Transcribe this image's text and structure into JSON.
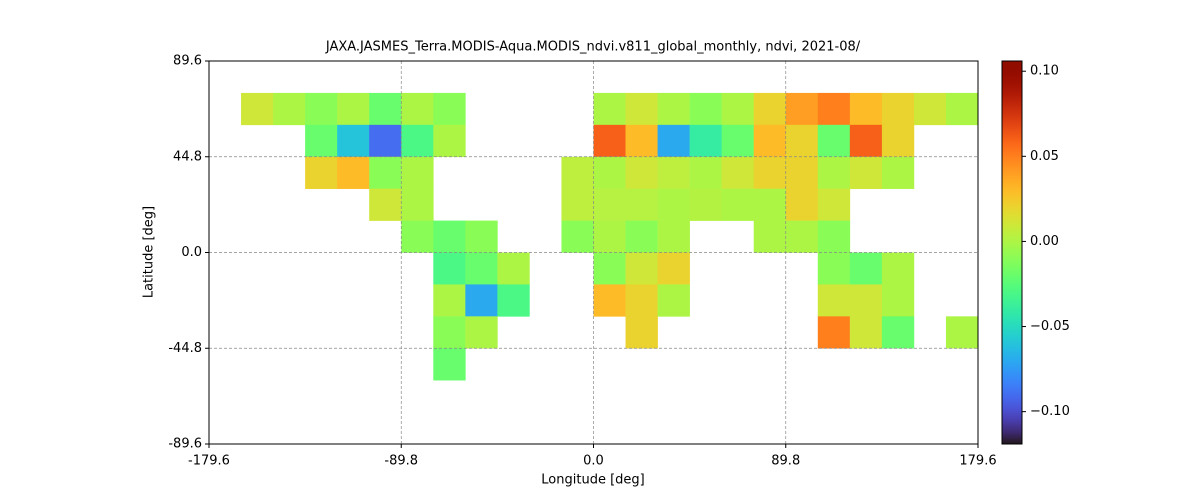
{
  "chart_data": {
    "type": "heatmap",
    "title": "JAXA.JASMES_Terra.MODIS-Aqua.MODIS_ndvi.v811_global_monthly, ndvi, 2021-08/",
    "x_label": "Longitude [deg]",
    "y_label": "Latitude [deg]",
    "xlim": [
      -179.6,
      179.6
    ],
    "ylim": [
      -89.6,
      89.6
    ],
    "xticks": [
      -179.6,
      -89.8,
      {
        "value": 0,
        "label": "0.0"
      },
      89.8,
      179.6
    ],
    "yticks": [
      -89.6,
      -44.8,
      {
        "value": 0,
        "label": "0.0"
      },
      44.8,
      89.6
    ],
    "grid": true,
    "colormap": "turbo",
    "clim": [
      -0.119,
      0.106
    ],
    "colorbar_ticks": [
      {
        "value": -0.1,
        "label": "−0.10"
      },
      {
        "value": -0.05,
        "label": "−0.05"
      },
      {
        "value": 0,
        "label": "0.00"
      },
      0.05,
      {
        "value": 0.1,
        "label": "0.10"
      }
    ],
    "z": [
      [
        null,
        null,
        null,
        null,
        null,
        null,
        null,
        null,
        null,
        null,
        null,
        null,
        null,
        null,
        null,
        null,
        null,
        null,
        null,
        null,
        null,
        null,
        null,
        null
      ],
      [
        null,
        0.01,
        0.0,
        -0.01,
        0.0,
        -0.02,
        0.0,
        -0.01,
        null,
        null,
        null,
        null,
        0.0,
        0.01,
        0.0,
        -0.01,
        0.0,
        0.02,
        0.04,
        0.05,
        0.03,
        0.02,
        0.01,
        0.0
      ],
      [
        null,
        null,
        null,
        -0.02,
        -0.06,
        -0.09,
        -0.03,
        0.0,
        null,
        null,
        null,
        null,
        0.06,
        0.03,
        -0.07,
        -0.04,
        -0.02,
        0.03,
        0.02,
        -0.02,
        0.06,
        0.02,
        null,
        null
      ],
      [
        null,
        null,
        null,
        0.02,
        0.03,
        -0.01,
        0.0,
        null,
        null,
        null,
        null,
        0.005,
        0.0,
        0.01,
        0.005,
        0.0,
        0.01,
        0.02,
        0.02,
        0.0,
        0.01,
        0.0,
        null,
        null
      ],
      [
        null,
        null,
        null,
        null,
        null,
        0.01,
        0.0,
        null,
        null,
        null,
        null,
        0.005,
        0.003,
        0.003,
        0.0,
        0.002,
        0.0,
        0.0,
        0.02,
        0.01,
        null,
        null,
        null,
        null
      ],
      [
        null,
        null,
        null,
        null,
        null,
        null,
        -0.01,
        -0.02,
        -0.01,
        null,
        null,
        -0.01,
        0.0,
        -0.01,
        0.0,
        null,
        null,
        0.0,
        0.0,
        -0.01,
        null,
        null,
        null,
        null
      ],
      [
        null,
        null,
        null,
        null,
        null,
        null,
        null,
        -0.03,
        -0.02,
        0.0,
        null,
        null,
        -0.01,
        0.01,
        0.02,
        null,
        null,
        null,
        null,
        -0.01,
        -0.02,
        0.0,
        null,
        null
      ],
      [
        null,
        null,
        null,
        null,
        null,
        null,
        null,
        0.0,
        -0.07,
        -0.03,
        null,
        null,
        0.03,
        0.02,
        0.0,
        null,
        null,
        null,
        null,
        0.01,
        0.01,
        0.0,
        null,
        null
      ],
      [
        null,
        null,
        null,
        null,
        null,
        null,
        null,
        -0.01,
        0.0,
        null,
        null,
        null,
        null,
        0.02,
        null,
        null,
        null,
        null,
        null,
        0.05,
        0.01,
        -0.02,
        null,
        0.0
      ],
      [
        null,
        null,
        null,
        null,
        null,
        null,
        null,
        -0.02,
        null,
        null,
        null,
        null,
        null,
        null,
        null,
        null,
        null,
        null,
        null,
        null,
        null,
        null,
        null,
        null
      ],
      [
        null,
        null,
        null,
        null,
        null,
        null,
        null,
        null,
        null,
        null,
        null,
        null,
        null,
        null,
        null,
        null,
        null,
        null,
        null,
        null,
        null,
        null,
        null,
        null
      ],
      [
        null,
        null,
        null,
        null,
        null,
        null,
        null,
        null,
        null,
        null,
        null,
        null,
        null,
        null,
        null,
        null,
        null,
        null,
        null,
        null,
        null,
        null,
        null,
        null
      ]
    ]
  }
}
